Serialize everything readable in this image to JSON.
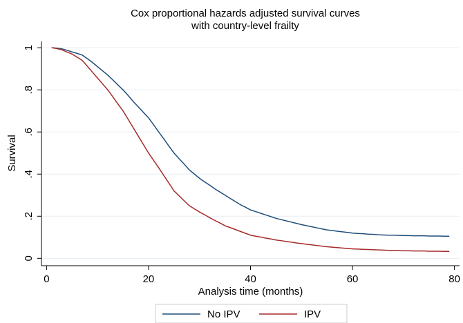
{
  "chart_data": {
    "type": "line",
    "title": [
      "Cox proportional hazards adjusted survival curves",
      "with country-level frailty"
    ],
    "x_label": "Analysis time (months)",
    "y_label": "Survival",
    "x": [
      1,
      2,
      3,
      4,
      5,
      6,
      7,
      8,
      9,
      10,
      11,
      12,
      13,
      14,
      15,
      16,
      17,
      18,
      19,
      20,
      21,
      22,
      23,
      24,
      25,
      26,
      27,
      28,
      29,
      30,
      31,
      32,
      33,
      34,
      35,
      36,
      37,
      38,
      39,
      40,
      41,
      42,
      43,
      44,
      45,
      46,
      47,
      48,
      49,
      50,
      51,
      52,
      53,
      54,
      55,
      56,
      57,
      58,
      59,
      60,
      61,
      62,
      63,
      64,
      65,
      66,
      67,
      68,
      69,
      70,
      71,
      72,
      73,
      74,
      75,
      76,
      77,
      78,
      79
    ],
    "series": [
      {
        "name": "No IPV",
        "color": "#1f4e79",
        "values": [
          1.0,
          0.998,
          0.995,
          0.988,
          0.98,
          0.973,
          0.965,
          0.948,
          0.93,
          0.91,
          0.89,
          0.87,
          0.847,
          0.823,
          0.8,
          0.773,
          0.745,
          0.719,
          0.693,
          0.667,
          0.634,
          0.6,
          0.567,
          0.533,
          0.5,
          0.473,
          0.447,
          0.42,
          0.4,
          0.38,
          0.363,
          0.347,
          0.33,
          0.315,
          0.3,
          0.285,
          0.27,
          0.255,
          0.243,
          0.23,
          0.222,
          0.214,
          0.206,
          0.198,
          0.19,
          0.184,
          0.178,
          0.172,
          0.166,
          0.16,
          0.155,
          0.15,
          0.145,
          0.14,
          0.135,
          0.132,
          0.129,
          0.126,
          0.123,
          0.12,
          0.118,
          0.117,
          0.115,
          0.114,
          0.112,
          0.111,
          0.11,
          0.11,
          0.109,
          0.108,
          0.108,
          0.107,
          0.107,
          0.107,
          0.106,
          0.106,
          0.106,
          0.105,
          0.105
        ]
      },
      {
        "name": "IPV",
        "color": "#a52a2a",
        "values": [
          1.0,
          0.996,
          0.99,
          0.98,
          0.97,
          0.955,
          0.94,
          0.912,
          0.884,
          0.856,
          0.828,
          0.8,
          0.767,
          0.733,
          0.7,
          0.66,
          0.62,
          0.58,
          0.54,
          0.5,
          0.465,
          0.43,
          0.393,
          0.357,
          0.32,
          0.297,
          0.273,
          0.25,
          0.235,
          0.22,
          0.207,
          0.193,
          0.18,
          0.168,
          0.155,
          0.146,
          0.137,
          0.128,
          0.119,
          0.11,
          0.105,
          0.101,
          0.096,
          0.092,
          0.087,
          0.084,
          0.08,
          0.077,
          0.073,
          0.07,
          0.067,
          0.064,
          0.061,
          0.058,
          0.055,
          0.053,
          0.051,
          0.049,
          0.047,
          0.045,
          0.044,
          0.043,
          0.042,
          0.041,
          0.04,
          0.039,
          0.038,
          0.038,
          0.037,
          0.036,
          0.036,
          0.035,
          0.035,
          0.035,
          0.034,
          0.034,
          0.034,
          0.033,
          0.033
        ]
      }
    ],
    "xlim": [
      -1,
      81
    ],
    "xticks": [
      0,
      20,
      40,
      60,
      80
    ],
    "ylim": [
      -0.035,
      1.03
    ],
    "yticks": [
      0,
      {
        "value": 0.2,
        "label": ".2"
      },
      {
        "value": 0.4,
        "label": ".4"
      },
      {
        "value": 0.6,
        "label": ".6"
      },
      {
        "value": 0.8,
        "label": ".8"
      },
      1
    ],
    "grid": true,
    "legend": "bottom"
  }
}
